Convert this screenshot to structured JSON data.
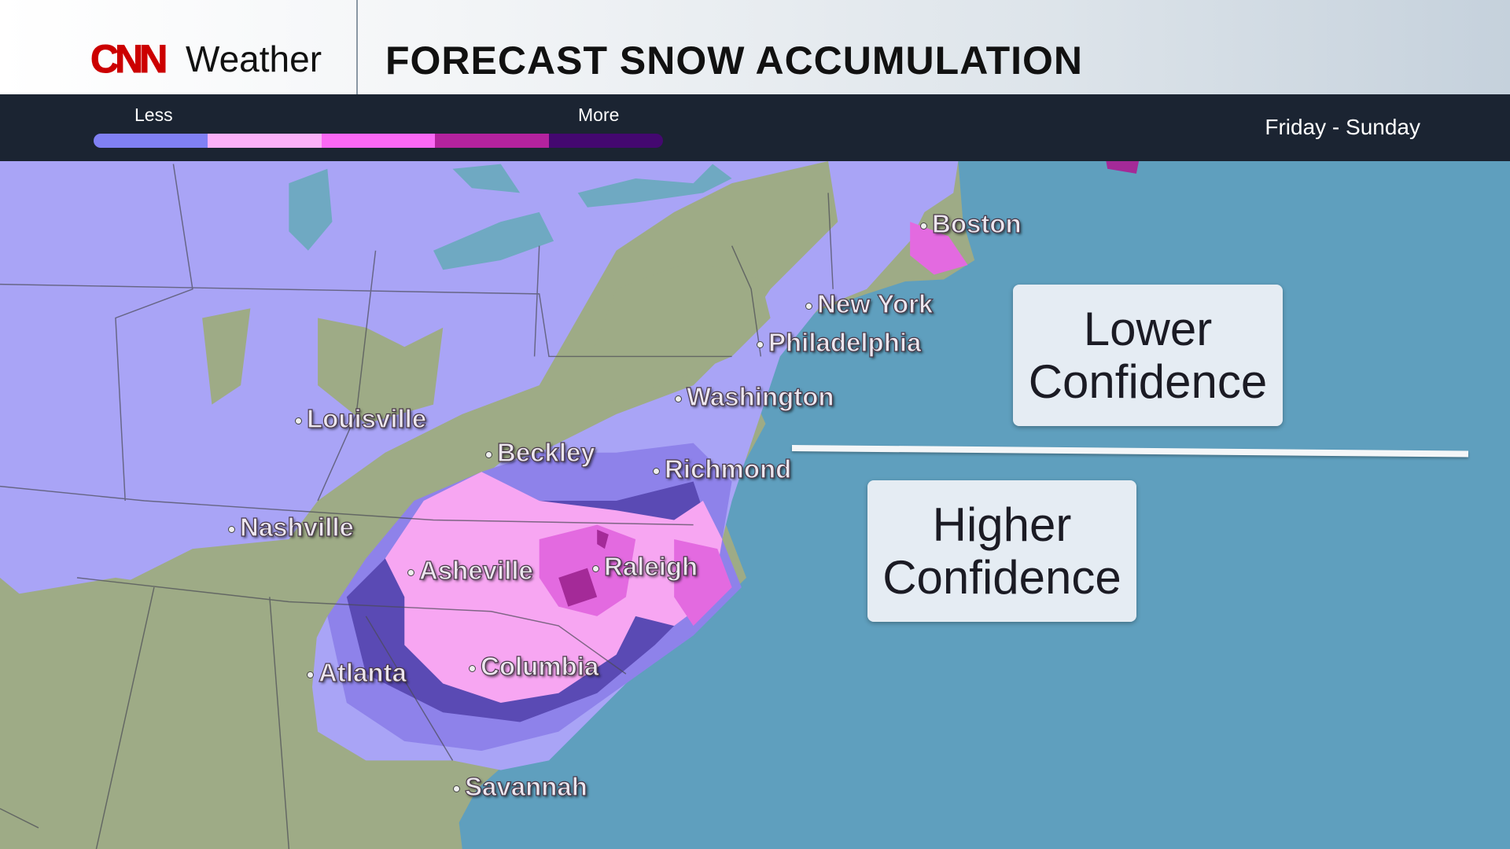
{
  "header": {
    "logo": "CNN",
    "brand": "Weather",
    "title": "FORECAST SNOW ACCUMULATION"
  },
  "legend": {
    "less_label": "Less",
    "more_label": "More",
    "colors": [
      "#8080f4",
      "#fbb0f8",
      "#fb68f5",
      "#b4229e",
      "#440870"
    ],
    "period": "Friday - Sunday"
  },
  "cities": [
    {
      "name": "Boston"
    },
    {
      "name": "New York"
    },
    {
      "name": "Philadelphia"
    },
    {
      "name": "Washington"
    },
    {
      "name": "Louisville"
    },
    {
      "name": "Beckley"
    },
    {
      "name": "Richmond"
    },
    {
      "name": "Nashville"
    },
    {
      "name": "Asheville"
    },
    {
      "name": "Raleigh"
    },
    {
      "name": "Atlanta"
    },
    {
      "name": "Columbia"
    },
    {
      "name": "Savannah"
    }
  ],
  "confidence": {
    "lower": "Lower Confidence",
    "higher": "Higher Confidence"
  },
  "colors": {
    "ocean": "#5f9fbe",
    "land": "#9eab86",
    "lakes": "#6fa9c2"
  }
}
